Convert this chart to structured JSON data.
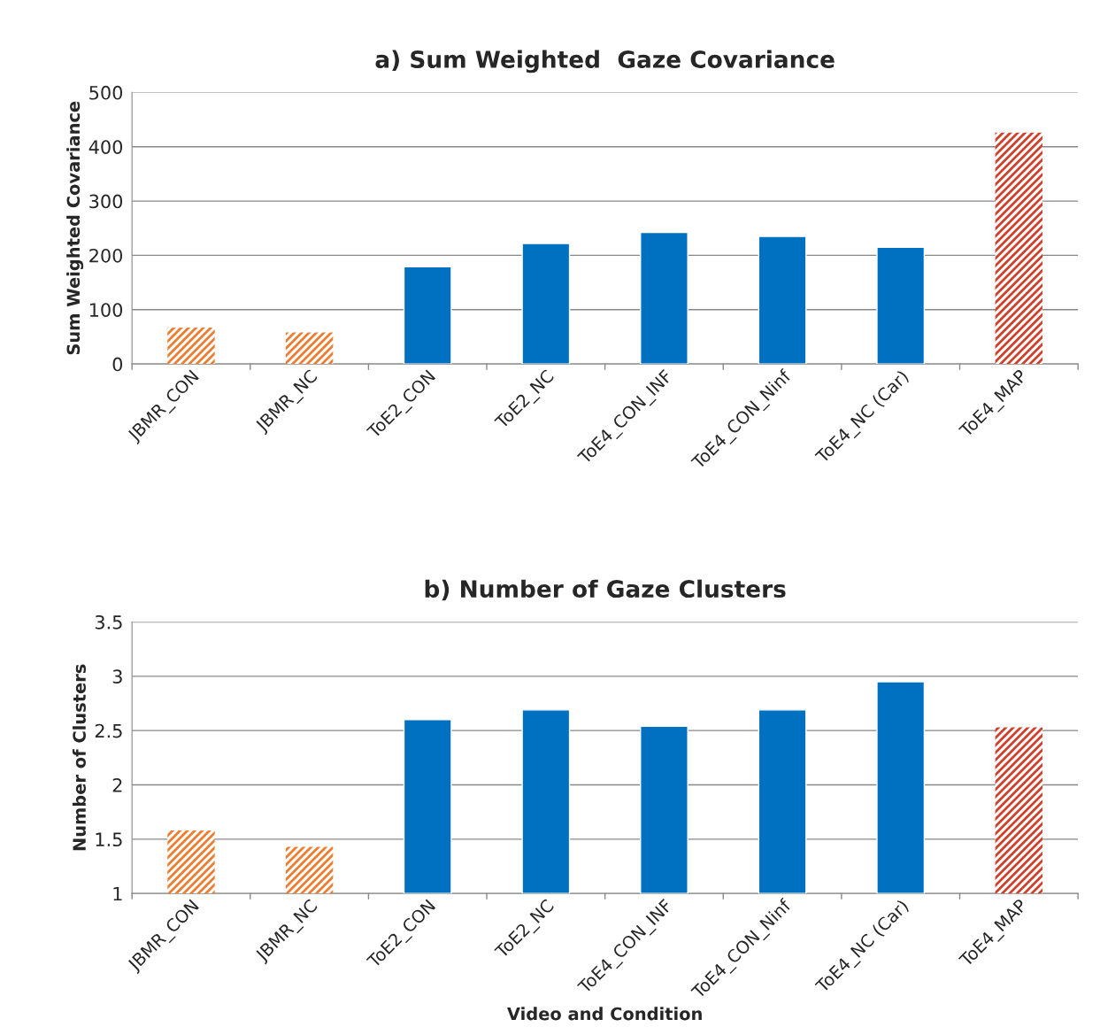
{
  "chart_data": [
    {
      "type": "bar",
      "title": "a) Sum Weighted  Gaze Covariance",
      "ylabel": "Sum Weighted Covariance",
      "categories": [
        "JBMR_CON",
        "JBMR_NC",
        "ToE2_CON",
        "ToE2_NC",
        "ToE4_CON_INF",
        "ToE4_CON_Ninf",
        "ToE4_NC (Car)",
        "ToE4_MAP"
      ],
      "values": [
        67,
        58,
        179,
        222,
        242,
        235,
        215,
        426
      ],
      "colors": [
        "#ed7d31",
        "#ed7d31",
        "#0070c0",
        "#0070c0",
        "#0070c0",
        "#0070c0",
        "#0070c0",
        "#d0402b"
      ],
      "ylim": [
        0,
        500
      ],
      "yticks": [
        0,
        100,
        200,
        300,
        400,
        500
      ],
      "grid": "y",
      "legend": false
    },
    {
      "type": "bar",
      "title": "b) Number of Gaze Clusters",
      "ylabel": "Number of Clusters",
      "xlabel": "Video and Condition",
      "categories": [
        "JBMR_CON",
        "JBMR_NC",
        "ToE2_CON",
        "ToE2_NC",
        "ToE4_CON_INF",
        "ToE4_CON_Ninf",
        "ToE4_NC (Car)",
        "ToE4_MAP"
      ],
      "values": [
        1.58,
        1.43,
        2.6,
        2.69,
        2.54,
        2.69,
        2.95,
        2.53
      ],
      "colors": [
        "#ed7d31",
        "#ed7d31",
        "#0070c0",
        "#0070c0",
        "#0070c0",
        "#0070c0",
        "#0070c0",
        "#d0402b"
      ],
      "ylim": [
        1,
        3.5
      ],
      "yticks": [
        1,
        1.5,
        2,
        2.5,
        3,
        3.5
      ],
      "grid": "y",
      "legend": false
    }
  ]
}
